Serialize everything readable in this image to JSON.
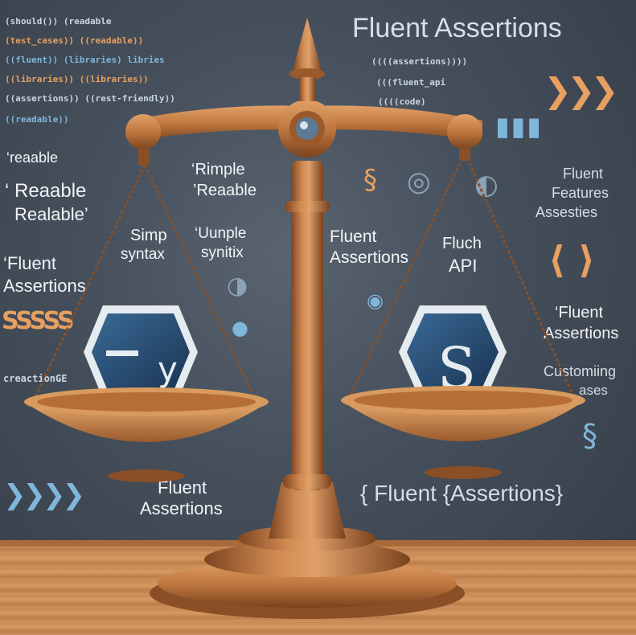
{
  "title": "Fluent Assertions",
  "code_lines_left": [
    "(should()) (readable",
    "(test_cases)) ((readable))",
    "((fluent)) (libraries) libries",
    "((libraries)) ((libraries))",
    "((assertions)) ((rest-friendly))",
    "((readable))"
  ],
  "code_lines_right": [
    "((((assertions))))",
    "(((fluent_api",
    "((((code)"
  ],
  "left_labels": {
    "readable_1": "‘reaable",
    "readable_2": "‘ Reaable",
    "readable_3": "Realable’",
    "fluent_assertions": "‘Fluent Assertions",
    "rimple": "‘Rimple",
    "rimple_readable": "’Reaable",
    "simple_syntax_1": "Simp",
    "simple_syntax_2": "syntax",
    "unple_1": "‘Uunple",
    "unple_2": "synitix",
    "sss": "SSSSS",
    "casts": "creactionGE"
  },
  "right_labels": {
    "fluent_assertions": "Fluent Assertions",
    "fluch": "Fluch",
    "api": "API",
    "fluent_features_1": "Fluent",
    "fluent_features_2": "Features",
    "fluent_features_3": "Assesties",
    "fluent_assertions_2a": "‘Fluent",
    "fluent_assertions_2b": "Assertions",
    "customize_1": "Customiing",
    "customize_2": "ases"
  },
  "bottom_labels": {
    "fluent_assertions_left_1": "Fluent",
    "fluent_assertions_left_2": "Assertions",
    "fluent_assertions_right": "{ Fluent {Assertions}"
  },
  "pan_icons": {
    "left_letter": "y",
    "right_letter": "S"
  },
  "colors": {
    "wood": "#c27a43",
    "wood_dark": "#8a4f26",
    "hexagon": "#24466a",
    "accent_orange": "#e8a060",
    "accent_blue": "#7fb6dc"
  }
}
